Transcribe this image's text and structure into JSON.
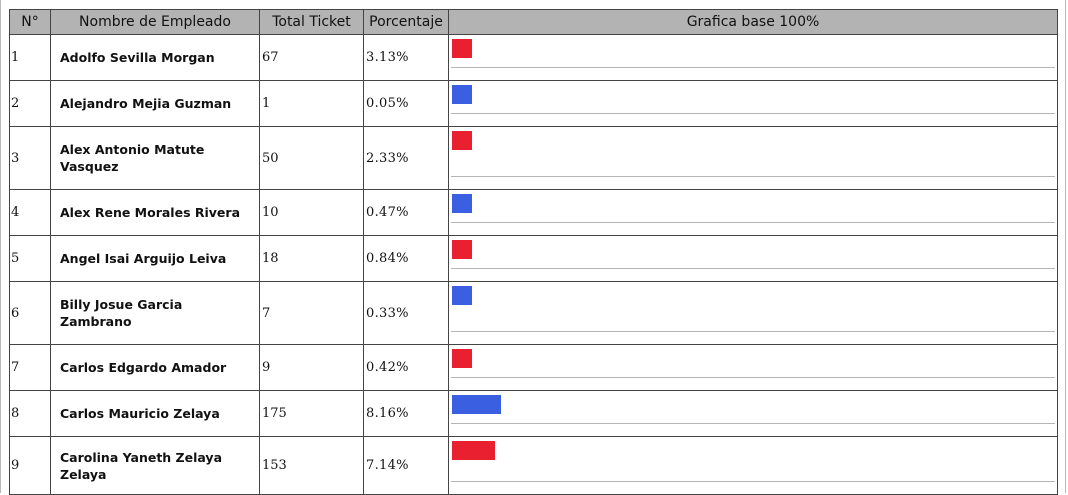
{
  "table": {
    "headers": {
      "no": "N°",
      "name": "Nombre de Empleado",
      "total": "Total Ticket",
      "pct": "Porcentaje",
      "graph": "Grafica base 100%"
    },
    "rows": [
      {
        "no": "1",
        "name": "Adolfo Sevilla Morgan",
        "total": "67",
        "pct": "3.13%",
        "pct_value": 3.13,
        "bar_color": "#e8202f"
      },
      {
        "no": "2",
        "name": "Alejandro Mejia Guzman",
        "total": "1",
        "pct": "0.05%",
        "pct_value": 0.05,
        "bar_color": "#3a5fe0"
      },
      {
        "no": "3",
        "name": "Alex Antonio Matute Vasquez",
        "total": "50",
        "pct": "2.33%",
        "pct_value": 2.33,
        "bar_color": "#e8202f"
      },
      {
        "no": "4",
        "name": "Alex Rene Morales Rivera",
        "total": "10",
        "pct": "0.47%",
        "pct_value": 0.47,
        "bar_color": "#3a5fe0"
      },
      {
        "no": "5",
        "name": "Angel Isai Arguijo Leiva",
        "total": "18",
        "pct": "0.84%",
        "pct_value": 0.84,
        "bar_color": "#e8202f"
      },
      {
        "no": "6",
        "name": "Billy Josue Garcia Zambrano",
        "total": "7",
        "pct": "0.33%",
        "pct_value": 0.33,
        "bar_color": "#3a5fe0"
      },
      {
        "no": "7",
        "name": "Carlos Edgardo Amador",
        "total": "9",
        "pct": "0.42%",
        "pct_value": 0.42,
        "bar_color": "#e8202f"
      },
      {
        "no": "8",
        "name": "Carlos Mauricio Zelaya",
        "total": "175",
        "pct": "8.16%",
        "pct_value": 8.16,
        "bar_color": "#3a5fe0"
      },
      {
        "no": "9",
        "name": "Carolina Yaneth Zelaya Zelaya",
        "total": "153",
        "pct": "7.14%",
        "pct_value": 7.14,
        "bar_color": "#e8202f"
      }
    ]
  }
}
